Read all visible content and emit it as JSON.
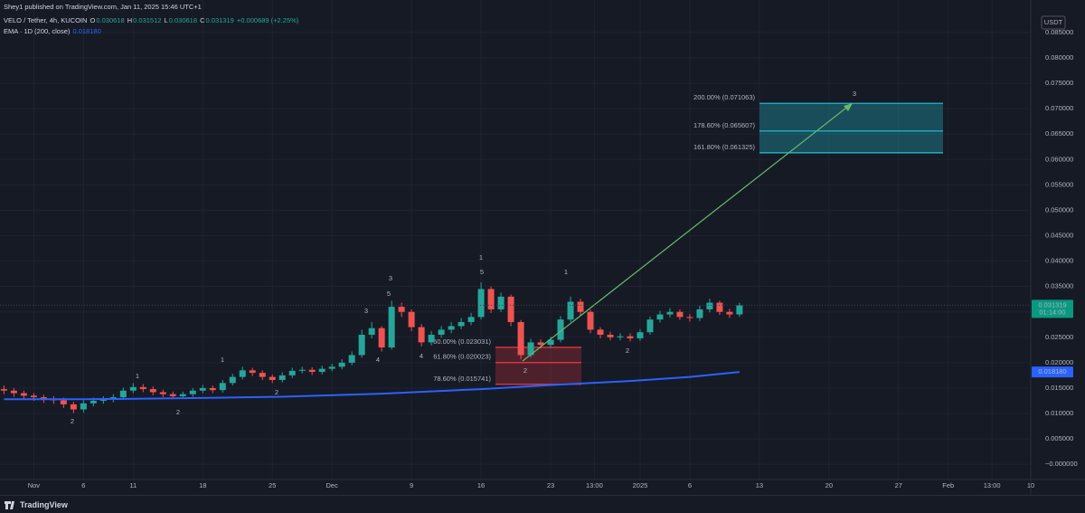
{
  "header": {
    "author": "Shey1 published on TradingView.com, Jan 11, 2025 15:46 UTC+1",
    "symbol": "VELO / Tether, 4h, KUCOIN",
    "ohlc": [
      {
        "key": "O",
        "value": "0.030618"
      },
      {
        "key": "H",
        "value": "0.031512"
      },
      {
        "key": "L",
        "value": "0.030618"
      },
      {
        "key": "C",
        "value": "0.031319"
      }
    ],
    "change": "+0.000689 (+2.25%)"
  },
  "footer": {
    "brand": "TradingView"
  },
  "chart_data": {
    "type": "candlestick",
    "currency": "USDT",
    "up_color": "#26a69a",
    "down_color": "#ef5350",
    "grid": true,
    "x": [
      -3,
      -2,
      -1,
      0,
      1,
      2,
      3,
      4,
      5,
      6,
      7,
      8,
      9,
      10,
      11,
      12,
      13,
      14,
      15,
      16,
      17,
      18,
      19,
      20,
      21,
      22,
      23,
      24,
      25,
      26,
      27,
      28,
      29,
      30,
      31,
      32,
      33,
      34,
      35,
      36,
      37,
      38,
      39,
      40,
      41,
      42,
      43,
      44,
      45,
      46,
      47,
      48,
      49,
      50,
      51,
      52,
      53,
      54,
      55,
      56,
      57,
      58,
      59,
      60,
      61,
      62,
      63,
      64,
      65,
      66,
      67,
      68,
      69,
      70,
      71
    ],
    "open": [
      0.0148,
      0.0145,
      0.014,
      0.0135,
      0.0132,
      0.0128,
      0.0126,
      0.0118,
      0.0108,
      0.012,
      0.0125,
      0.0128,
      0.0132,
      0.0145,
      0.0152,
      0.0148,
      0.0142,
      0.0138,
      0.0134,
      0.0138,
      0.0145,
      0.015,
      0.0146,
      0.016,
      0.0172,
      0.0185,
      0.018,
      0.0172,
      0.0166,
      0.0175,
      0.0184,
      0.0186,
      0.0182,
      0.0188,
      0.0192,
      0.02,
      0.0215,
      0.0255,
      0.0268,
      0.023,
      0.031,
      0.03,
      0.027,
      0.024,
      0.0255,
      0.0265,
      0.0272,
      0.028,
      0.029,
      0.0345,
      0.0305,
      0.033,
      0.028,
      0.0215,
      0.024,
      0.0235,
      0.0245,
      0.0285,
      0.032,
      0.03,
      0.0265,
      0.0255,
      0.025,
      0.0252,
      0.0248,
      0.026,
      0.0285,
      0.0295,
      0.03,
      0.029,
      0.0288,
      0.0305,
      0.0318,
      0.03,
      0.0295
    ],
    "high": [
      0.0155,
      0.015,
      0.0145,
      0.014,
      0.0137,
      0.0134,
      0.0131,
      0.0123,
      0.0126,
      0.0131,
      0.0134,
      0.0138,
      0.0151,
      0.016,
      0.0158,
      0.0153,
      0.0147,
      0.0143,
      0.0143,
      0.015,
      0.0156,
      0.0155,
      0.0166,
      0.0178,
      0.0192,
      0.019,
      0.0185,
      0.0177,
      0.0181,
      0.019,
      0.0192,
      0.0191,
      0.0194,
      0.0198,
      0.0207,
      0.0222,
      0.0265,
      0.028,
      0.0272,
      0.0322,
      0.0318,
      0.0305,
      0.0276,
      0.0262,
      0.0272,
      0.028,
      0.0288,
      0.0298,
      0.0358,
      0.035,
      0.0338,
      0.0334,
      0.0284,
      0.0247,
      0.0246,
      0.0251,
      0.0292,
      0.033,
      0.0326,
      0.0304,
      0.027,
      0.0261,
      0.0258,
      0.0258,
      0.0266,
      0.0291,
      0.0302,
      0.0307,
      0.0305,
      0.0296,
      0.0312,
      0.0326,
      0.0322,
      0.0306,
      0.0318
    ],
    "low": [
      0.0138,
      0.0133,
      0.0128,
      0.0125,
      0.0121,
      0.0119,
      0.0111,
      0.0101,
      0.0102,
      0.0114,
      0.0119,
      0.0122,
      0.0127,
      0.014,
      0.0142,
      0.0136,
      0.0132,
      0.0128,
      0.0129,
      0.0133,
      0.014,
      0.014,
      0.0141,
      0.0155,
      0.0167,
      0.0174,
      0.0166,
      0.016,
      0.0161,
      0.017,
      0.0179,
      0.0176,
      0.0177,
      0.0183,
      0.0187,
      0.0195,
      0.021,
      0.0248,
      0.0222,
      0.0226,
      0.029,
      0.0262,
      0.0232,
      0.0234,
      0.0249,
      0.0258,
      0.0266,
      0.0274,
      0.0285,
      0.0298,
      0.03,
      0.0272,
      0.0207,
      0.021,
      0.0228,
      0.0229,
      0.024,
      0.028,
      0.0293,
      0.0258,
      0.0248,
      0.0244,
      0.0244,
      0.0242,
      0.0243,
      0.0255,
      0.0279,
      0.0289,
      0.0284,
      0.0281,
      0.0282,
      0.0299,
      0.0294,
      0.0288,
      0.029
    ],
    "close": [
      0.0145,
      0.014,
      0.0135,
      0.0132,
      0.0128,
      0.0126,
      0.0118,
      0.0108,
      0.012,
      0.0125,
      0.0128,
      0.0132,
      0.0145,
      0.0152,
      0.0148,
      0.0142,
      0.0138,
      0.0134,
      0.0138,
      0.0145,
      0.015,
      0.0146,
      0.016,
      0.0172,
      0.0185,
      0.018,
      0.0172,
      0.0166,
      0.0175,
      0.0184,
      0.0186,
      0.0182,
      0.0188,
      0.0192,
      0.02,
      0.0215,
      0.0255,
      0.0268,
      0.023,
      0.031,
      0.03,
      0.027,
      0.024,
      0.0255,
      0.0265,
      0.0272,
      0.028,
      0.029,
      0.0345,
      0.0305,
      0.033,
      0.028,
      0.0215,
      0.024,
      0.0235,
      0.0245,
      0.0285,
      0.032,
      0.03,
      0.0265,
      0.0255,
      0.025,
      0.0252,
      0.0248,
      0.026,
      0.0285,
      0.0295,
      0.03,
      0.029,
      0.0288,
      0.0305,
      0.0318,
      0.03,
      0.0295,
      0.0313
    ],
    "xlim": [
      -3.4,
      100.3
    ],
    "xticks": [
      {
        "value": 0,
        "label": "Nov"
      },
      {
        "value": 5,
        "label": "6"
      },
      {
        "value": 10,
        "label": "11"
      },
      {
        "value": 17,
        "label": "18"
      },
      {
        "value": 24,
        "label": "25"
      },
      {
        "value": 30,
        "label": "Dec"
      },
      {
        "value": 38,
        "label": "9"
      },
      {
        "value": 45,
        "label": "16"
      },
      {
        "value": 52,
        "label": "23"
      },
      {
        "value": 56.4,
        "label": "13:00"
      },
      {
        "value": 61,
        "label": "2025"
      },
      {
        "value": 66,
        "label": "6"
      },
      {
        "value": 73,
        "label": "13"
      },
      {
        "value": 80,
        "label": "20"
      },
      {
        "value": 87,
        "label": "27"
      },
      {
        "value": 92,
        "label": "Feb"
      },
      {
        "value": 96.4,
        "label": "13:00"
      },
      {
        "value": 100.3,
        "label": "10"
      }
    ],
    "ylim": [
      -0.003,
      0.0914
    ],
    "yticks": [
      {
        "value": 0,
        "label": "−0.000000"
      },
      {
        "value": 0.005,
        "label": "0.005000"
      },
      {
        "value": 0.01,
        "label": "0.010000"
      },
      {
        "value": 0.015,
        "label": "0.015000"
      },
      {
        "value": 0.02,
        "label": "0.020000"
      },
      {
        "value": 0.025,
        "label": "0.025000"
      },
      {
        "value": 0.03,
        "label": "0.030000"
      },
      {
        "value": 0.035,
        "label": "0.035000"
      },
      {
        "value": 0.04,
        "label": "0.040000"
      },
      {
        "value": 0.045,
        "label": "0.045000"
      },
      {
        "value": 0.05,
        "label": "0.050000"
      },
      {
        "value": 0.055,
        "label": "0.055000"
      },
      {
        "value": 0.06,
        "label": "0.060000"
      },
      {
        "value": 0.065,
        "label": "0.065000"
      },
      {
        "value": 0.07,
        "label": "0.070000"
      },
      {
        "value": 0.075,
        "label": "0.075000"
      },
      {
        "value": 0.08,
        "label": "0.080000"
      },
      {
        "value": 0.085,
        "label": "0.085000"
      }
    ],
    "last_price": 0.031319,
    "countdown": "01:14:00",
    "last_color": "#089981",
    "ema": {
      "name": "EMA · 1D (200, close)",
      "color": "#2962ff",
      "x": [
        -3,
        5,
        15,
        25,
        35,
        45,
        52,
        60,
        66,
        71
      ],
      "values": [
        0.0128,
        0.0128,
        0.013,
        0.0133,
        0.0139,
        0.0148,
        0.0156,
        0.0164,
        0.0172,
        0.01818
      ],
      "last": {
        "value": 0.01818,
        "label": "0.018180"
      }
    },
    "fib_retracement": {
      "color": "#f23645",
      "levels": [
        {
          "value": 0.023031,
          "label": "50.00% (0.023031)"
        },
        {
          "value": 0.020023,
          "label": "61.80% (0.020023)"
        },
        {
          "value": 0.015741,
          "label": "78.60% (0.015741)"
        }
      ]
    },
    "fib_extension": {
      "color": "#22c3d6",
      "levels": [
        {
          "value": 0.071063,
          "label": "200.00% (0.071063)"
        },
        {
          "value": 0.065607,
          "label": "178.60% (0.065607)"
        },
        {
          "value": 0.061325,
          "label": "161.80% (0.061325)"
        }
      ]
    },
    "wave_labels": [
      {
        "text": "2",
        "color": "#4caf50"
      },
      {
        "text": "1",
        "color": "#ffeb3b"
      },
      {
        "text": "2",
        "color": "#ffeb3b"
      },
      {
        "text": "1",
        "color": "#ff9800"
      },
      {
        "text": "2",
        "color": "#ff9800"
      },
      {
        "text": "3",
        "color": "#ff9800"
      },
      {
        "text": "3",
        "color": "#ffeb3b"
      },
      {
        "text": "5",
        "color": "#ff9800"
      },
      {
        "text": "4",
        "color": "#ff9800"
      },
      {
        "text": "4",
        "color": "#ffeb3b"
      },
      {
        "text": "1",
        "color": "#2962ff"
      },
      {
        "text": "5",
        "color": "#ffeb3b"
      },
      {
        "text": "2",
        "color": "#2962ff"
      },
      {
        "text": "1",
        "color": "#f23645"
      },
      {
        "text": "2",
        "color": "#f23645"
      },
      {
        "text": "3",
        "color": "#2962ff"
      }
    ]
  }
}
